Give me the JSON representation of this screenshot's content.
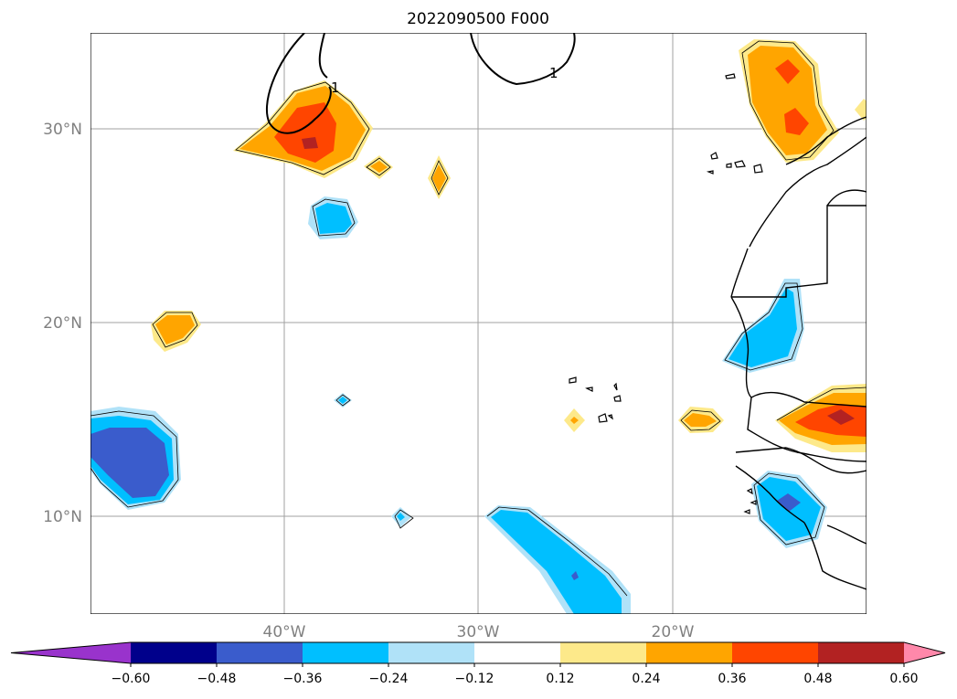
{
  "title": "2022090500 F000",
  "map": {
    "lon_labels": [
      "40°W",
      "30°W",
      "20°W"
    ],
    "lat_labels": [
      "30°N",
      "20°N",
      "10°N"
    ],
    "contour_labels": [
      "1",
      "1"
    ]
  },
  "colorbar": {
    "ticks": [
      "−0.60",
      "−0.48",
      "−0.36",
      "−0.24",
      "−0.12",
      "0.12",
      "0.24",
      "0.36",
      "0.48",
      "0.60"
    ],
    "colors": [
      "#9933cc",
      "#00008b",
      "#3a5ccc",
      "#00bfff",
      "#b0e2f8",
      "#ffffff",
      "#fde98a",
      "#ffa500",
      "#ff4500",
      "#b22222",
      "#ff88aa"
    ],
    "extend": "both"
  }
}
